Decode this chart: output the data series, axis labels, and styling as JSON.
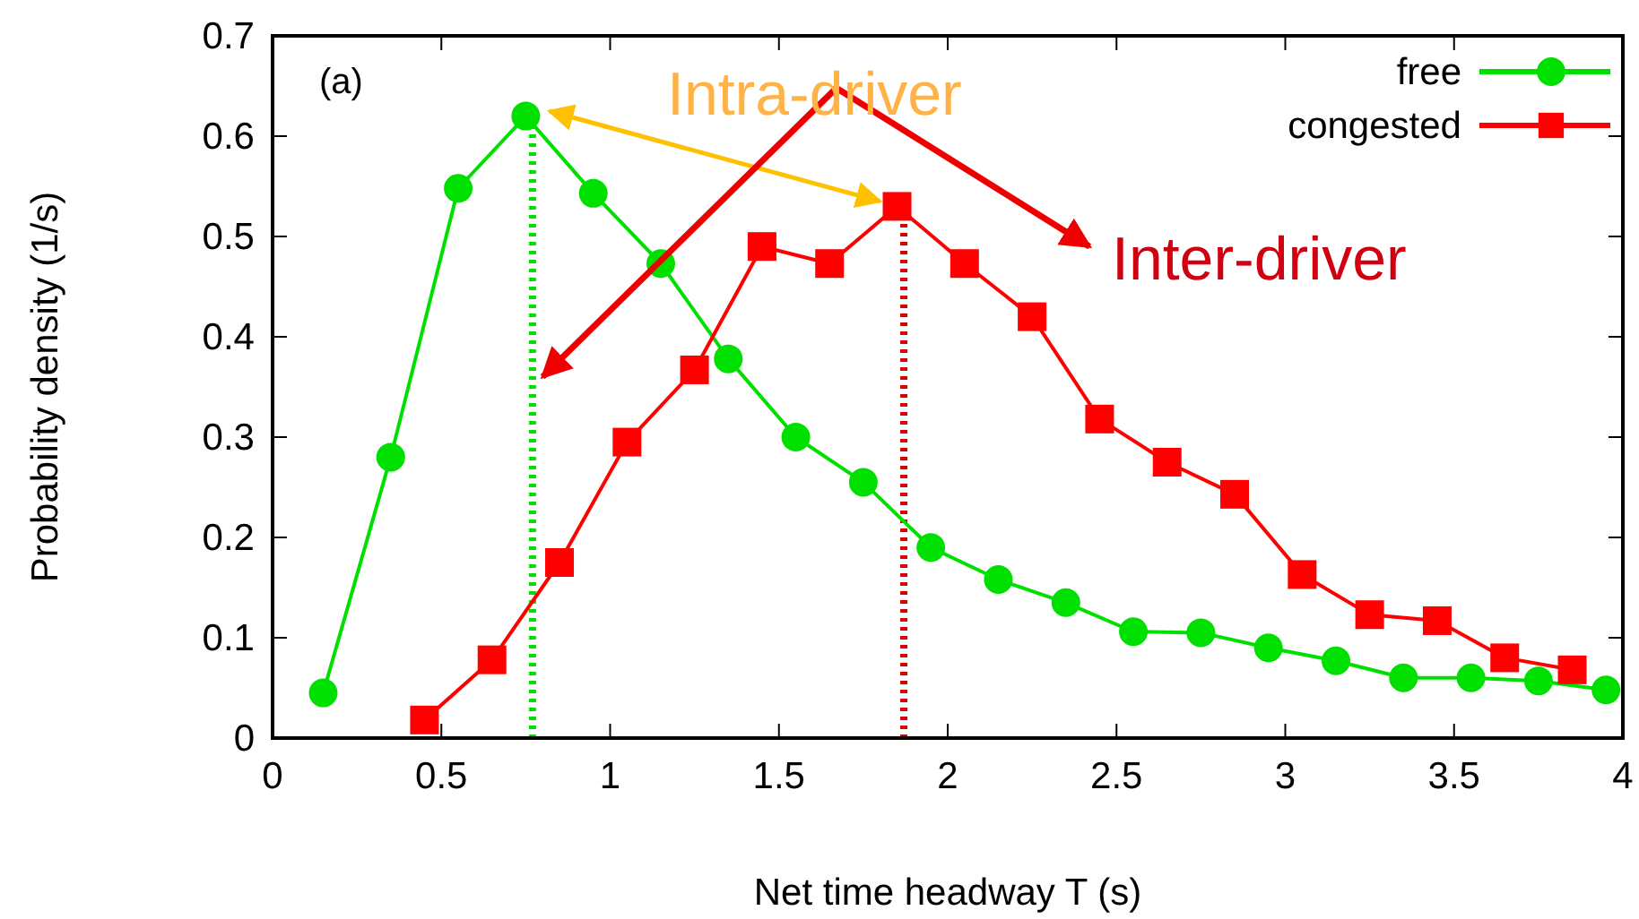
{
  "chart_data": {
    "type": "line",
    "xlabel": "Net time headway T (s)",
    "ylabel": "Probability density (1/s)",
    "xlim": [
      0,
      4
    ],
    "xticks": [
      0,
      0.5,
      1,
      1.5,
      2,
      2.5,
      3,
      3.5,
      4
    ],
    "ylim": [
      0,
      0.7
    ],
    "yticks": [
      0,
      0.1,
      0.2,
      0.3,
      0.4,
      0.5,
      0.6,
      0.7
    ],
    "grid": false,
    "legend": "top right",
    "line_style": "solid",
    "series": [
      {
        "name": "free",
        "color": "#00e000",
        "marker": "circle",
        "x": [
          0.15,
          0.35,
          0.55,
          0.75,
          0.95,
          1.15,
          1.35,
          1.55,
          1.75,
          1.95,
          2.15,
          2.35,
          2.55,
          2.75,
          2.95,
          3.15,
          3.35,
          3.55,
          3.75,
          3.95
        ],
        "values": [
          0.045,
          0.28,
          0.548,
          0.62,
          0.543,
          0.473,
          0.378,
          0.3,
          0.255,
          0.19,
          0.158,
          0.135,
          0.106,
          0.105,
          0.09,
          0.077,
          0.06,
          0.06,
          0.057,
          0.048
        ]
      },
      {
        "name": "congested",
        "color": "#ff0000",
        "marker": "square",
        "x": [
          0.45,
          0.65,
          0.85,
          1.05,
          1.25,
          1.45,
          1.65,
          1.85,
          2.05,
          2.25,
          2.45,
          2.65,
          2.85,
          3.05,
          3.25,
          3.45,
          3.65,
          3.85
        ],
        "values": [
          0.018,
          0.078,
          0.175,
          0.295,
          0.367,
          0.49,
          0.473,
          0.53,
          0.473,
          0.42,
          0.318,
          0.275,
          0.243,
          0.163,
          0.123,
          0.117,
          0.08,
          0.068
        ]
      }
    ],
    "ref_lines": [
      {
        "axis": "x",
        "value": 0.77,
        "color": "#00e000",
        "line_style": "dotted"
      },
      {
        "axis": "x",
        "value": 1.87,
        "color": "#dd0000",
        "line_style": "dotted"
      }
    ],
    "annotations": [
      "(a)",
      "Intra-driver",
      "Inter-driver"
    ]
  }
}
